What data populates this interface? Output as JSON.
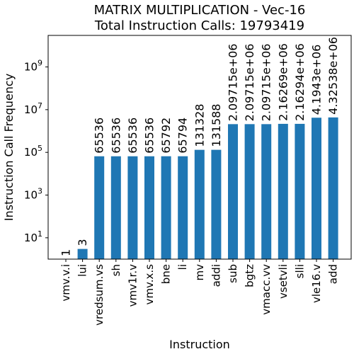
{
  "chart_data": {
    "type": "bar",
    "title": "MATRIX MULTIPLICATION - Vec-16",
    "subtitle": "Total Instruction Calls: 19793419",
    "xlabel": "Instruction",
    "ylabel": "Instruction Call Frequency",
    "yscale": "log",
    "ylim": [
      1,
      30000000000
    ],
    "grid": false,
    "categories": [
      "vmv.v.i",
      "lui",
      "vredsum.vs",
      "sh",
      "vmv1r.v",
      "vmv.x.s",
      "bne",
      "li",
      "mv",
      "addi",
      "sub",
      "bgtz",
      "vmacc.vv",
      "vsetvli",
      "slli",
      "vle16.v",
      "add"
    ],
    "values": [
      1,
      3,
      65536,
      65536,
      65536,
      65536,
      65792,
      65794,
      131328,
      131588,
      2097150,
      2097150,
      2097150,
      2162690,
      2162940,
      4194300,
      4325380
    ],
    "data_labels": [
      "1",
      "3",
      "65536",
      "65536",
      "65536",
      "65536",
      "65792",
      "65794",
      "131328",
      "131588",
      "2.09715e+06",
      "2.09715e+06",
      "2.09715e+06",
      "2.16269e+06",
      "2.16294e+06",
      "4.1943e+06",
      "4.32538e+06"
    ],
    "y_ticks": [
      {
        "value": 10,
        "base": "10",
        "exp": "1"
      },
      {
        "value": 1000,
        "base": "10",
        "exp": "3"
      },
      {
        "value": 100000,
        "base": "10",
        "exp": "5"
      },
      {
        "value": 10000000,
        "base": "10",
        "exp": "7"
      },
      {
        "value": 1000000000,
        "base": "10",
        "exp": "9"
      }
    ],
    "bar_color": "#1f77b4"
  }
}
